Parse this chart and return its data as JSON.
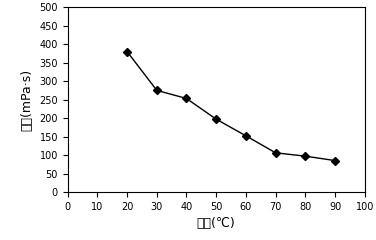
{
  "x": [
    20,
    30,
    40,
    50,
    60,
    70,
    80,
    90
  ],
  "y": [
    380,
    275,
    253,
    197,
    152,
    106,
    97,
    85
  ],
  "xlabel": "温度(℃)",
  "ylabel": "粘度(mPa·s)",
  "xlim": [
    0,
    100
  ],
  "ylim": [
    0,
    500
  ],
  "xticks": [
    0,
    10,
    20,
    30,
    40,
    50,
    60,
    70,
    80,
    90,
    100
  ],
  "yticks": [
    0,
    50,
    100,
    150,
    200,
    250,
    300,
    350,
    400,
    450,
    500
  ],
  "line_color": "#000000",
  "marker": "D",
  "markersize": 4,
  "linewidth": 1.0,
  "bg_color": "#ffffff",
  "tick_fontsize": 7,
  "label_fontsize": 9
}
